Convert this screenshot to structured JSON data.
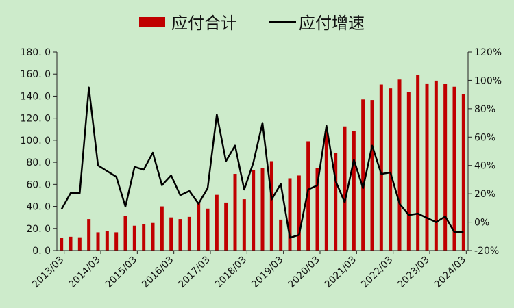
{
  "chart_data": {
    "type": "bar+line",
    "legend": {
      "position": "top-center",
      "items": [
        {
          "label": "应付合计",
          "kind": "bar",
          "color": "#c00000"
        },
        {
          "label": "应付增速",
          "kind": "line",
          "color": "#000000"
        }
      ]
    },
    "x_labels": [
      "2013/03",
      "2014/03",
      "2015/03",
      "2016/03",
      "2017/03",
      "2018/03",
      "2019/03",
      "2020/03",
      "2021/03",
      "2022/03",
      "2023/03",
      "2024/03"
    ],
    "quarters": [
      "2013/03",
      "2013/06",
      "2013/09",
      "2013/12",
      "2014/03",
      "2014/06",
      "2014/09",
      "2014/12",
      "2015/03",
      "2015/06",
      "2015/09",
      "2015/12",
      "2016/03",
      "2016/06",
      "2016/09",
      "2016/12",
      "2017/03",
      "2017/06",
      "2017/09",
      "2017/12",
      "2018/03",
      "2018/06",
      "2018/09",
      "2018/12",
      "2019/03",
      "2019/06",
      "2019/09",
      "2019/12",
      "2020/03",
      "2020/06",
      "2020/09",
      "2020/12",
      "2021/03",
      "2021/06",
      "2021/09",
      "2021/12",
      "2022/03",
      "2022/06",
      "2022/09",
      "2022/12",
      "2023/03",
      "2023/06",
      "2023/09",
      "2023/12",
      "2024/03"
    ],
    "left_axis": {
      "min": 0,
      "max": 180,
      "step": 20,
      "tick_labels": [
        "0. 0",
        "20. 0",
        "40. 0",
        "60. 0",
        "80. 0",
        "100. 0",
        "120. 0",
        "140. 0",
        "160. 0",
        "180. 0"
      ]
    },
    "right_axis": {
      "min": -20,
      "max": 120,
      "step": 20,
      "tick_labels": [
        "-20%",
        "0%",
        "20%",
        "40%",
        "60%",
        "80%",
        "100%",
        "120%"
      ]
    },
    "series": [
      {
        "name": "应付合计",
        "type": "bar",
        "axis": "left",
        "color": "#c00000",
        "values": [
          11.5,
          12.5,
          12.0,
          28.5,
          16.5,
          17.5,
          16.5,
          31.5,
          22.5,
          24.0,
          25.0,
          40.0,
          30.0,
          28.5,
          30.5,
          43.0,
          38.0,
          50.5,
          43.5,
          69.5,
          46.5,
          73.0,
          74.5,
          81.0,
          28.0,
          65.5,
          68.0,
          99.0,
          75.0,
          108.0,
          88.5,
          112.5,
          108.0,
          137.0,
          136.5,
          150.5,
          147.0,
          155.0,
          144.0,
          159.5,
          151.5,
          154.0,
          151.0,
          148.5,
          142.0
        ]
      },
      {
        "name": "应付增速",
        "type": "line",
        "axis": "right",
        "color": "#000000",
        "values": [
          9,
          20.5,
          20.5,
          95,
          40,
          36,
          32,
          11,
          39,
          37,
          49,
          26,
          33,
          19,
          22,
          13,
          24,
          76,
          43,
          54,
          23,
          42,
          70,
          16,
          27,
          -11,
          -9,
          23,
          26,
          68,
          29,
          14,
          44,
          24,
          54,
          34,
          35,
          13,
          5,
          6,
          3,
          0,
          4,
          -7,
          -7
        ]
      }
    ]
  }
}
